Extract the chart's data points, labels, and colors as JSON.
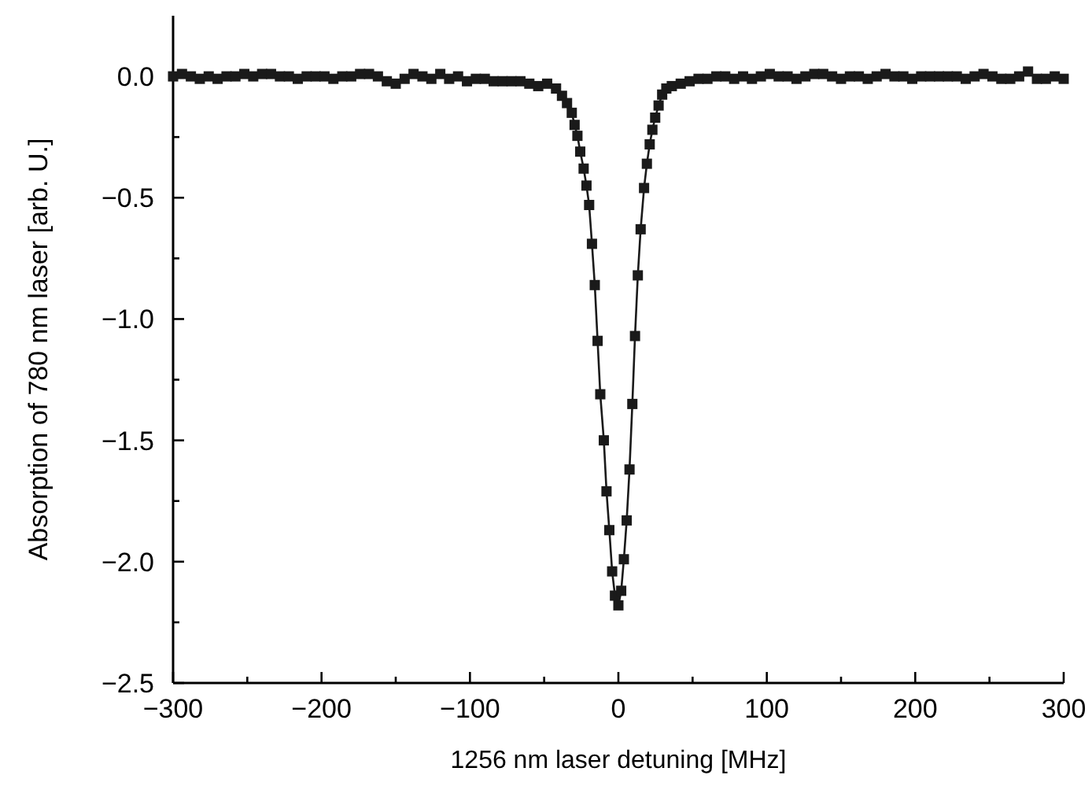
{
  "chart_data": {
    "type": "line",
    "xlabel": "1256 nm laser detuning [MHz]",
    "ylabel": "Absorption of 780 nm laser [arb. U.]",
    "xlim": [
      -300,
      300
    ],
    "ylim": [
      -2.5,
      0.25
    ],
    "xticks": [
      {
        "value": -300,
        "label": "−300"
      },
      {
        "value": -250,
        "label": null
      },
      {
        "value": -200,
        "label": "−200"
      },
      {
        "value": -150,
        "label": null
      },
      {
        "value": -100,
        "label": "−100"
      },
      {
        "value": -50,
        "label": null
      },
      0,
      {
        "value": 50,
        "label": null
      },
      100,
      {
        "value": 150,
        "label": null
      },
      200,
      {
        "value": 250,
        "label": null
      },
      300
    ],
    "yticks": [
      {
        "value": -2.5,
        "label": "−2.5"
      },
      {
        "value": -2.25,
        "label": null
      },
      {
        "value": -2,
        "label": "−2.0"
      },
      {
        "value": -1.75,
        "label": null
      },
      {
        "value": -1.5,
        "label": "−1.5"
      },
      {
        "value": -1.25,
        "label": null
      },
      {
        "value": -1,
        "label": "−1.0"
      },
      {
        "value": -0.75,
        "label": null
      },
      {
        "value": -0.5,
        "label": "−0.5"
      },
      {
        "value": -0.25,
        "label": null
      },
      {
        "value": 0,
        "label": "0.0"
      }
    ],
    "marker": "square",
    "line_style": "solid",
    "grid": false,
    "series": [
      {
        "color": "#1a1a1a",
        "x": [
          -300,
          -294,
          -288,
          -282,
          -276,
          -270,
          -264,
          -258,
          -252,
          -246,
          -240,
          -234,
          -228,
          -222,
          -216,
          -210,
          -204,
          -198,
          -192,
          -186,
          -180,
          -174,
          -168,
          -162,
          -156,
          -150,
          -144,
          -138,
          -132,
          -126,
          -120,
          -114,
          -108,
          -102,
          -96,
          -90,
          -84,
          -78,
          -72,
          -66,
          -60,
          -54,
          -48,
          -42,
          -38,
          -34.6,
          -31.4,
          -29.5,
          -27.6,
          -25.7,
          -23.4,
          -21.5,
          -19.7,
          -17.8,
          -15.9,
          -14,
          -12.2,
          -9.8,
          -8,
          -6.1,
          -4.2,
          -2.3,
          0,
          1.9,
          3.7,
          5.6,
          7.5,
          9.4,
          11.2,
          13.1,
          15,
          17.3,
          19.2,
          21.1,
          22.9,
          24.8,
          27.1,
          29.5,
          32.3,
          36,
          42,
          48,
          54,
          60,
          66,
          72,
          78,
          84,
          90,
          96,
          102,
          108,
          114,
          120,
          126,
          132,
          138,
          144,
          150,
          156,
          162,
          168,
          174,
          180,
          186,
          192,
          198,
          204,
          210,
          216,
          222,
          228,
          234,
          240,
          246,
          252,
          258,
          264,
          270,
          276,
          282,
          288,
          294,
          300
        ],
        "values": [
          0,
          0.01,
          0,
          -0.01,
          0,
          -0.01,
          0,
          0,
          0.01,
          0,
          0.01,
          0.01,
          0,
          0,
          -0.01,
          0,
          0,
          0,
          -0.01,
          0,
          0,
          0.01,
          0.01,
          0,
          -0.02,
          -0.03,
          -0.01,
          0.01,
          0,
          -0.01,
          0.01,
          -0.01,
          0,
          -0.02,
          -0.01,
          -0.01,
          -0.02,
          -0.02,
          -0.02,
          -0.02,
          -0.03,
          -0.04,
          -0.03,
          -0.05,
          -0.08,
          -0.11,
          -0.15,
          -0.2,
          -0.245,
          -0.31,
          -0.38,
          -0.45,
          -0.53,
          -0.69,
          -0.86,
          -1.09,
          -1.31,
          -1.5,
          -1.71,
          -1.87,
          -2.04,
          -2.14,
          -2.18,
          -2.12,
          -1.99,
          -1.83,
          -1.62,
          -1.35,
          -1.07,
          -0.82,
          -0.63,
          -0.46,
          -0.36,
          -0.28,
          -0.22,
          -0.17,
          -0.12,
          -0.075,
          -0.05,
          -0.04,
          -0.03,
          -0.02,
          -0.01,
          -0.01,
          0,
          0,
          -0.01,
          0,
          -0.01,
          0,
          0.01,
          0,
          0,
          -0.01,
          0,
          0.01,
          0.01,
          0,
          -0.01,
          0,
          0,
          -0.01,
          0,
          0.01,
          0,
          0,
          -0.01,
          0,
          0,
          0,
          0,
          0,
          -0.01,
          0,
          0.01,
          0,
          -0.01,
          -0.01,
          0,
          0.02,
          -0.01,
          -0.01,
          0,
          -0.01
        ]
      }
    ]
  }
}
